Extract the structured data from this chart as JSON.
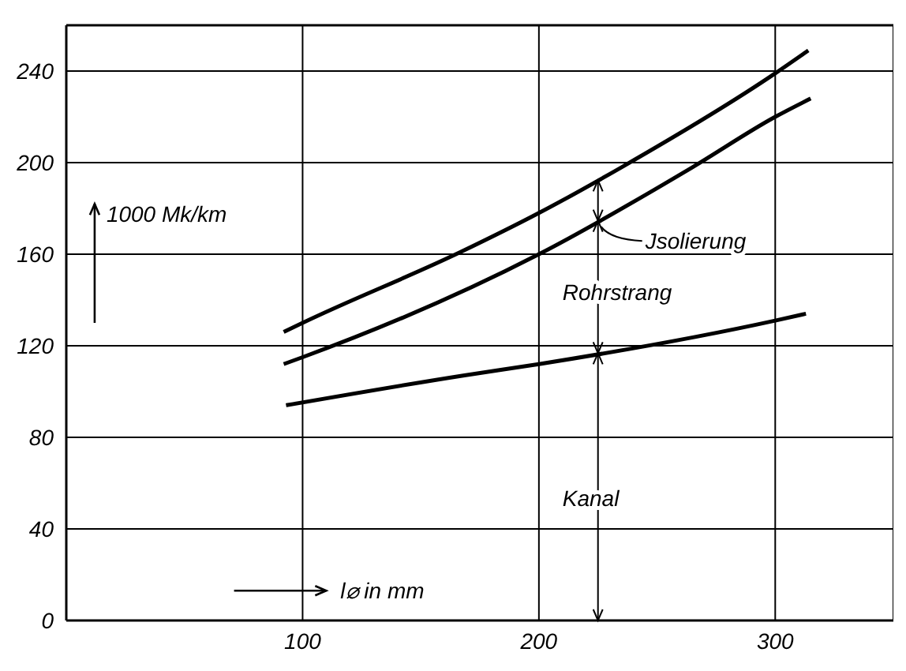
{
  "chart_data": {
    "type": "line",
    "xlabel": "l⌀ in mm",
    "ylabel": "1000 Mk/km",
    "annotations": [
      {
        "text": "Jsolierung",
        "x": 225,
        "y": 172
      },
      "Rohrstrang",
      "Kanal"
    ],
    "series": [
      {
        "color": "#000000",
        "x": [
          92,
          100,
          167,
          200,
          235,
          300,
          314
        ],
        "values": [
          126,
          130,
          161,
          178,
          198,
          239,
          249
        ]
      },
      {
        "color": "#000000",
        "x": [
          92,
          100,
          200,
          265,
          300,
          315
        ],
        "values": [
          112,
          115,
          160,
          198,
          220,
          228
        ]
      },
      {
        "color": "#000000",
        "x": [
          93,
          168,
          200,
          300,
          313
        ],
        "values": [
          94,
          107,
          112,
          131,
          134
        ]
      }
    ],
    "xlim": [
      0,
      350
    ],
    "ylim": [
      0,
      260
    ],
    "xticks": [
      100,
      200,
      300
    ],
    "yticks": [
      0,
      40,
      80,
      120,
      160,
      200,
      240
    ],
    "grid": true,
    "marker": "none",
    "line_style": "solid"
  }
}
